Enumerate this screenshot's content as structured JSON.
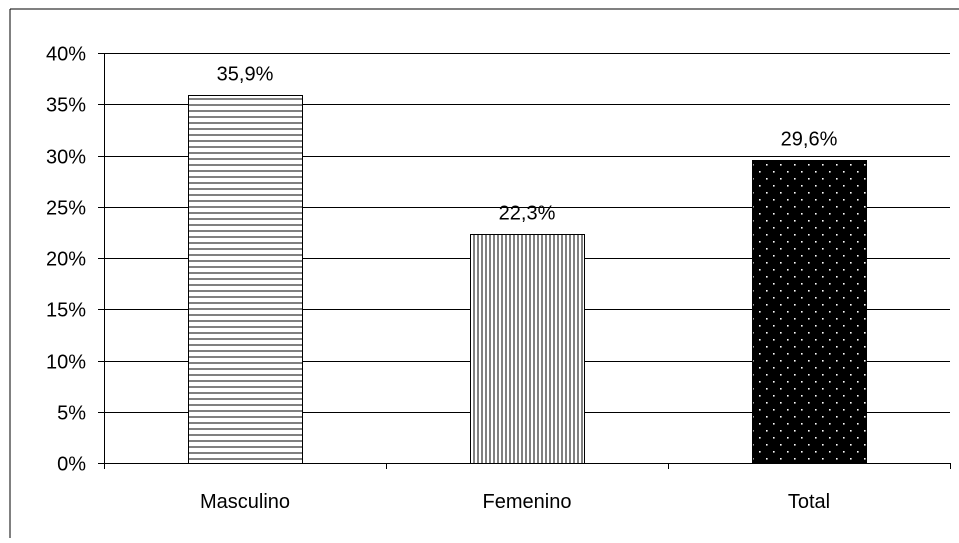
{
  "chart_data": {
    "type": "bar",
    "title": "",
    "xlabel": "",
    "ylabel": "",
    "categories": [
      "Masculino",
      "Femenino",
      "Total"
    ],
    "values": [
      35.9,
      22.3,
      29.6
    ],
    "data_labels": [
      "35,9%",
      "22,3%",
      "29,6%"
    ],
    "ylim": [
      0,
      40
    ],
    "yticks": [
      0,
      5,
      10,
      15,
      20,
      25,
      30,
      35,
      40
    ],
    "ytick_labels": [
      "0%",
      "5%",
      "10%",
      "15%",
      "20%",
      "25%",
      "30%",
      "35%",
      "40%"
    ],
    "grid": true,
    "legend": "none",
    "bar_fills": [
      "horizontal-stripes",
      "vertical-stripes",
      "white-dots-on-black"
    ],
    "colors": {
      "gridline": "#000000",
      "bar_stroke": "#000000",
      "background": "#ffffff"
    }
  }
}
